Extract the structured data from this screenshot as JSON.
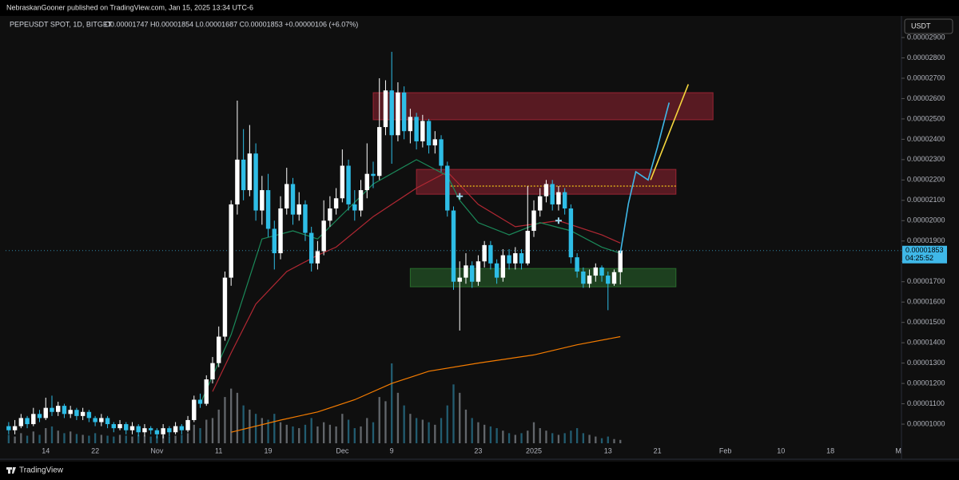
{
  "header": {
    "text": "NebraskanGooner published on TradingView.com, Jan 15, 2025 13:34 UTC-6"
  },
  "footer": {
    "brand": "TradingView"
  },
  "chart_data": {
    "type": "candlestick",
    "symbol": "PEPEUSDT SPOT, 1D, BITGET",
    "ohlc_text": "O0.00001747 H0.00001854 L0.00001687 C0.00001853 +0.00000106 (+6.07%)",
    "currency": "USDT",
    "last_price": {
      "value": 1.853e-05,
      "label": "0.00001853"
    },
    "countdown": "04:25:52",
    "up_color": "#ffffff",
    "down_color": "#2ebde6",
    "grid": false,
    "categories": [
      null,
      null,
      null,
      null,
      null,
      null,
      "14",
      null,
      null,
      null,
      null,
      null,
      null,
      null,
      "22",
      null,
      null,
      null,
      null,
      null,
      null,
      null,
      null,
      null,
      "Nov",
      null,
      null,
      null,
      null,
      null,
      null,
      null,
      null,
      null,
      "11",
      null,
      null,
      null,
      null,
      null,
      null,
      null,
      "19",
      null,
      null,
      null,
      null,
      null,
      null,
      null,
      null,
      null,
      null,
      null,
      "Dec",
      null,
      null,
      null,
      null,
      null,
      null,
      null,
      "9",
      null,
      null,
      null,
      null,
      null,
      null,
      null,
      null,
      null,
      null,
      null,
      null,
      null,
      "23",
      null,
      null,
      null,
      null,
      null,
      null,
      null,
      null,
      "2025",
      null,
      null,
      null,
      null,
      null,
      null,
      null,
      null,
      null,
      null,
      null,
      "13",
      null,
      null,
      null,
      null,
      null,
      null,
      null,
      "21",
      null,
      null,
      null,
      null,
      null,
      null,
      null,
      null,
      null,
      null,
      "Feb",
      null,
      null,
      null,
      null,
      null,
      null,
      null,
      null,
      "10",
      null,
      null,
      null,
      null,
      null,
      null,
      null,
      "18",
      null,
      null,
      null,
      null,
      null,
      null,
      null,
      null,
      null,
      null,
      "M"
    ],
    "open": [
      9.9e-06,
      9.7e-06,
      9.9e-06,
      1.03e-05,
      1e-05,
      1.05e-05,
      1.03e-05,
      1.08e-05,
      1.06e-05,
      1.09e-05,
      1.05e-05,
      1.07e-05,
      1.04e-05,
      1.06e-05,
      1.03e-05,
      1.01e-05,
      1.03e-05,
      1e-05,
      9.8e-06,
      1e-05,
      9.7e-06,
      9.9e-06,
      9.6e-06,
      9.8e-06,
      9.7e-06,
      9.5e-06,
      9.8e-06,
      9.6e-06,
      9.9e-06,
      9.7e-06,
      1.02e-05,
      1.12e-05,
      1.1e-05,
      1.22e-05,
      1.3e-05,
      1.43e-05,
      1.72e-05,
      2.08e-05,
      2.3e-05,
      2.15e-05,
      2.33e-05,
      2.05e-05,
      2.15e-05,
      1.96e-05,
      1.84e-05,
      2.06e-05,
      2.18e-05,
      2.03e-05,
      2.08e-05,
      1.94e-05,
      1.79e-05,
      1.85e-05,
      2e-05,
      2.06e-05,
      2.11e-05,
      2.27e-05,
      2.08e-05,
      2.05e-05,
      2.15e-05,
      2.23e-05,
      2.22e-05,
      2.46e-05,
      2.64e-05,
      2.42e-05,
      2.63e-05,
      2.44e-05,
      2.51e-05,
      2.39e-05,
      2.49e-05,
      2.37e-05,
      2.4e-05,
      2.27e-05,
      2.05e-05,
      1.7e-05,
      1.72e-05,
      1.78e-05,
      1.7e-05,
      1.8e-05,
      1.88e-05,
      1.79e-05,
      1.72e-05,
      1.83e-05,
      1.79e-05,
      1.84e-05,
      1.79e-05,
      1.95e-05,
      2.05e-05,
      2.12e-05,
      2.18e-05,
      2.08e-05,
      2.14e-05,
      2.06e-05,
      1.82e-05,
      1.75e-05,
      1.69e-05,
      1.73e-05,
      1.77e-05,
      1.73e-05,
      1.69e-05,
      1.747e-05,
      null,
      null,
      null,
      null,
      null,
      null,
      null,
      null,
      null,
      null,
      null,
      null,
      null,
      null,
      null,
      null,
      null,
      null,
      null,
      null,
      null,
      null,
      null,
      null,
      null,
      null,
      null,
      null,
      null,
      null,
      null,
      null,
      null,
      null,
      null,
      null,
      null,
      null,
      null,
      null,
      null,
      null,
      null,
      null,
      null
    ],
    "high": [
      1.01e-05,
      1.02e-05,
      1.05e-05,
      1.04e-05,
      1.08e-05,
      1.07e-05,
      1.13e-05,
      1.14e-05,
      1.11e-05,
      1.1e-05,
      1.09e-05,
      1.08e-05,
      1.08e-05,
      1.07e-05,
      1.04e-05,
      1.05e-05,
      1.04e-05,
      1.01e-05,
      1.02e-05,
      1.01e-05,
      1.01e-05,
      1e-05,
      1e-05,
      9.9e-06,
      9.8e-06,
      1e-05,
      9.9e-06,
      1.01e-05,
      1e-05,
      1.04e-05,
      1.14e-05,
      1.15e-05,
      1.24e-05,
      1.33e-05,
      1.48e-05,
      1.75e-05,
      2.1e-05,
      2.59e-05,
      2.45e-05,
      2.47e-05,
      2.38e-05,
      2.22e-05,
      2.23e-05,
      2e-05,
      2.12e-05,
      2.26e-05,
      2.21e-05,
      2.14e-05,
      2.1e-05,
      1.97e-05,
      1.9e-05,
      2.1e-05,
      2.12e-05,
      2.16e-05,
      2.35e-05,
      2.3e-05,
      2.15e-05,
      2.2e-05,
      2.38e-05,
      2.29e-05,
      2.7e-05,
      2.69e-05,
      2.83e-05,
      2.68e-05,
      2.66e-05,
      2.55e-05,
      2.53e-05,
      2.52e-05,
      2.5e-05,
      2.44e-05,
      2.42e-05,
      2.29e-05,
      2.07e-05,
      1.8e-05,
      1.84e-05,
      1.8e-05,
      1.83e-05,
      1.9e-05,
      1.9e-05,
      1.81e-05,
      1.86e-05,
      1.86e-05,
      1.87e-05,
      1.86e-05,
      2.17e-05,
      2.1e-05,
      2.16e-05,
      2.2e-05,
      2.2e-05,
      2.17e-05,
      2.16e-05,
      2.08e-05,
      1.84e-05,
      1.77e-05,
      1.76e-05,
      1.79e-05,
      1.78e-05,
      1.75e-05,
      1.76e-05,
      1.854e-05,
      null,
      null,
      null,
      null,
      null,
      null,
      null,
      null,
      null,
      null,
      null,
      null,
      null,
      null,
      null,
      null,
      null,
      null,
      null,
      null,
      null,
      null,
      null,
      null,
      null,
      null,
      null,
      null,
      null,
      null,
      null,
      null,
      null,
      null,
      null,
      null,
      null,
      null,
      null,
      null,
      null,
      null,
      null,
      null,
      null
    ],
    "low": [
      9.5e-06,
      9.5e-06,
      9.8e-06,
      9.8e-06,
      9.9e-06,
      1.01e-05,
      1.02e-05,
      1.04e-05,
      1.04e-05,
      1.03e-05,
      1.03e-05,
      1.02e-05,
      1.02e-05,
      1.01e-05,
      9.9e-06,
      9.9e-06,
      9.8e-06,
      9.6e-06,
      9.7e-06,
      9.5e-06,
      9.5e-06,
      9.4e-06,
      9.4e-06,
      9.5e-06,
      9.3e-06,
      9.3e-06,
      9.4e-06,
      9.5e-06,
      9.5e-06,
      9.6e-06,
      1.01e-05,
      1.08e-05,
      1.09e-05,
      1.2e-05,
      1.28e-05,
      1.41e-05,
      1.68e-05,
      2.03e-05,
      2.1e-05,
      2.12e-05,
      2e-05,
      1.98e-05,
      1.92e-05,
      1.76e-05,
      1.81e-05,
      2.03e-05,
      1.98e-05,
      2e-05,
      1.9e-05,
      1.75e-05,
      1.76e-05,
      1.83e-05,
      1.97e-05,
      2.03e-05,
      2.09e-05,
      2.05e-05,
      2e-05,
      2.02e-05,
      2.11e-05,
      2.16e-05,
      2.2e-05,
      2.42e-05,
      2.28e-05,
      2.39e-05,
      2.4e-05,
      2.38e-05,
      2.35e-05,
      2.36e-05,
      2.33e-05,
      2.33e-05,
      2.24e-05,
      2.02e-05,
      1.66e-05,
      1.46e-05,
      1.69e-05,
      1.67e-05,
      1.68e-05,
      1.77e-05,
      1.76e-05,
      1.69e-05,
      1.7e-05,
      1.76e-05,
      1.76e-05,
      1.76e-05,
      1.78e-05,
      1.92e-05,
      2.02e-05,
      2.09e-05,
      2.05e-05,
      2.05e-05,
      2.03e-05,
      1.79e-05,
      1.72e-05,
      1.67e-05,
      1.67e-05,
      1.7e-05,
      1.7e-05,
      1.56e-05,
      1.68e-05,
      1.687e-05,
      null,
      null,
      null,
      null,
      null,
      null,
      null,
      null,
      null,
      null,
      null,
      null,
      null,
      null,
      null,
      null,
      null,
      null,
      null,
      null,
      null,
      null,
      null,
      null,
      null,
      null,
      null,
      null,
      null,
      null,
      null,
      null,
      null,
      null,
      null,
      null,
      null,
      null,
      null,
      null,
      null,
      null,
      null,
      null,
      null
    ],
    "close": [
      9.7e-06,
      9.9e-06,
      1.03e-05,
      1e-05,
      1.05e-05,
      1.03e-05,
      1.08e-05,
      1.06e-05,
      1.09e-05,
      1.05e-05,
      1.07e-05,
      1.04e-05,
      1.06e-05,
      1.03e-05,
      1.01e-05,
      1.03e-05,
      1e-05,
      9.8e-06,
      1e-05,
      9.7e-06,
      9.9e-06,
      9.6e-06,
      9.8e-06,
      9.7e-06,
      9.5e-06,
      9.8e-06,
      9.6e-06,
      9.9e-06,
      9.7e-06,
      1.02e-05,
      1.12e-05,
      1.1e-05,
      1.22e-05,
      1.3e-05,
      1.43e-05,
      1.72e-05,
      2.08e-05,
      2.3e-05,
      2.15e-05,
      2.33e-05,
      2.05e-05,
      2.15e-05,
      1.96e-05,
      1.84e-05,
      2.06e-05,
      2.18e-05,
      2.03e-05,
      2.08e-05,
      1.94e-05,
      1.79e-05,
      1.85e-05,
      2e-05,
      2.06e-05,
      2.11e-05,
      2.27e-05,
      2.08e-05,
      2.05e-05,
      2.15e-05,
      2.23e-05,
      2.22e-05,
      2.46e-05,
      2.64e-05,
      2.42e-05,
      2.63e-05,
      2.44e-05,
      2.51e-05,
      2.39e-05,
      2.49e-05,
      2.37e-05,
      2.4e-05,
      2.27e-05,
      2.05e-05,
      1.7e-05,
      1.72e-05,
      1.78e-05,
      1.7e-05,
      1.8e-05,
      1.88e-05,
      1.79e-05,
      1.72e-05,
      1.83e-05,
      1.79e-05,
      1.84e-05,
      1.79e-05,
      1.95e-05,
      2.05e-05,
      2.12e-05,
      2.18e-05,
      2.08e-05,
      2.14e-05,
      2.06e-05,
      1.82e-05,
      1.75e-05,
      1.69e-05,
      1.73e-05,
      1.77e-05,
      1.73e-05,
      1.69e-05,
      1.747e-05,
      1.853e-05,
      null,
      null,
      null,
      null,
      null,
      null,
      null,
      null,
      null,
      null,
      null,
      null,
      null,
      null,
      null,
      null,
      null,
      null,
      null,
      null,
      null,
      null,
      null,
      null,
      null,
      null,
      null,
      null,
      null,
      null,
      null,
      null,
      null,
      null,
      null,
      null,
      null,
      null,
      null,
      null,
      null,
      null,
      null,
      null,
      null
    ],
    "volume": [
      10,
      8,
      12,
      9,
      14,
      10,
      18,
      20,
      15,
      12,
      14,
      11,
      10,
      9,
      12,
      10,
      9,
      8,
      10,
      9,
      8,
      10,
      9,
      8,
      9,
      10,
      8,
      9,
      10,
      12,
      22,
      18,
      28,
      30,
      40,
      55,
      65,
      60,
      45,
      40,
      35,
      30,
      28,
      35,
      25,
      22,
      20,
      18,
      22,
      30,
      20,
      25,
      22,
      20,
      35,
      28,
      18,
      20,
      30,
      25,
      55,
      50,
      95,
      60,
      45,
      35,
      30,
      28,
      25,
      22,
      30,
      45,
      70,
      60,
      40,
      30,
      25,
      22,
      20,
      18,
      15,
      12,
      10,
      12,
      15,
      25,
      18,
      15,
      12,
      10,
      12,
      15,
      18,
      12,
      10,
      8,
      6,
      8,
      5,
      4,
      null,
      null,
      null,
      null,
      null,
      null,
      null,
      null,
      null,
      null,
      null,
      null,
      null,
      null,
      null,
      null,
      null,
      null,
      null,
      null,
      null,
      null,
      null,
      null,
      null,
      null,
      null,
      null,
      null,
      null,
      null,
      null,
      null,
      null,
      null,
      null,
      null,
      null,
      null,
      null,
      null,
      null,
      null,
      null,
      null
    ],
    "indicators": [
      {
        "color": "#f57c00",
        "x": [
          36,
          44,
          50,
          56,
          62,
          68,
          76,
          85,
          92,
          99
        ],
        "values": [
          9.6e-06,
          1.02e-05,
          1.06e-05,
          1.12e-05,
          1.2e-05,
          1.26e-05,
          1.3e-05,
          1.34e-05,
          1.39e-05,
          1.43e-05
        ]
      },
      {
        "color": "#b22833",
        "x": [
          33,
          36,
          40,
          45,
          50,
          53,
          59,
          66,
          71,
          76,
          82,
          89,
          96,
          99
        ],
        "values": [
          1.16e-05,
          1.35e-05,
          1.59e-05,
          1.75e-05,
          1.83e-05,
          1.87e-05,
          2.02e-05,
          2.16e-05,
          2.24e-05,
          2.08e-05,
          1.97e-05,
          2e-05,
          1.93e-05,
          1.89e-05
        ]
      },
      {
        "color": "#1b8a5a",
        "x": [
          31,
          36,
          41,
          46,
          50,
          55,
          59,
          66,
          71,
          73,
          76,
          81,
          86,
          91,
          96,
          99
        ],
        "values": [
          1.1e-05,
          1.44e-05,
          1.91e-05,
          1.95e-05,
          1.91e-05,
          2.06e-05,
          2.18e-05,
          2.3e-05,
          2.22e-05,
          2.1e-05,
          1.99e-05,
          1.93e-05,
          1.99e-05,
          1.95e-05,
          1.87e-05,
          1.84e-05
        ]
      }
    ],
    "zones": [
      {
        "color": "#b2283a",
        "low": 2.496e-05,
        "high": 2.629e-05,
        "start": 59,
        "end": 114
      },
      {
        "color": "#b2283a",
        "low": 2.13e-05,
        "high": 2.252e-05,
        "start": 66,
        "end": 108
      },
      {
        "color": "#2e7d32",
        "low": 1.675e-05,
        "high": 1.765e-05,
        "start": 65,
        "end": 108
      }
    ],
    "level": {
      "color": "#f0c419",
      "value": 2.17e-05,
      "start": 71,
      "end": 108
    },
    "drawings": [
      {
        "color": "#3fb8e8",
        "x": [
          99,
          100.3,
          101.5,
          103.5,
          105,
          106.5,
          106.9
        ],
        "values": [
          1.84e-05,
          2.083e-05,
          2.24e-05,
          2.2e-05,
          2.36e-05,
          2.535e-05,
          2.58e-05
        ]
      },
      {
        "color": "#f5d63d",
        "x": [
          103.9,
          110
        ],
        "values": [
          2.2e-05,
          2.67e-05
        ]
      }
    ],
    "ylim": [
      9.06e-06,
      3.006e-05
    ],
    "yticks": [
      {
        "value": 2.9e-05,
        "label": "0.00002900"
      },
      {
        "value": 2.8e-05,
        "label": "0.00002800"
      },
      {
        "value": 2.7e-05,
        "label": "0.00002700"
      },
      {
        "value": 2.6e-05,
        "label": "0.00002600"
      },
      {
        "value": 2.5e-05,
        "label": "0.00002500"
      },
      {
        "value": 2.4e-05,
        "label": "0.00002400"
      },
      {
        "value": 2.3e-05,
        "label": "0.00002300"
      },
      {
        "value": 2.2e-05,
        "label": "0.00002200"
      },
      {
        "value": 2.1e-05,
        "label": "0.00002100"
      },
      {
        "value": 2e-05,
        "label": "0.00002000"
      },
      {
        "value": 1.9e-05,
        "label": "0.00001900"
      },
      {
        "value": 1.8e-05,
        "label": "0.00001800"
      },
      {
        "value": 1.7e-05,
        "label": "0.00001700"
      },
      {
        "value": 1.6e-05,
        "label": "0.00001600"
      },
      {
        "value": 1.5e-05,
        "label": "0.00001500"
      },
      {
        "value": 1.4e-05,
        "label": "0.00001400"
      },
      {
        "value": 1.3e-05,
        "label": "0.00001300"
      },
      {
        "value": 1.2e-05,
        "label": "0.00001200"
      },
      {
        "value": 1.1e-05,
        "label": "0.00001100"
      },
      {
        "value": 1e-05,
        "label": "0.00001000"
      }
    ]
  }
}
